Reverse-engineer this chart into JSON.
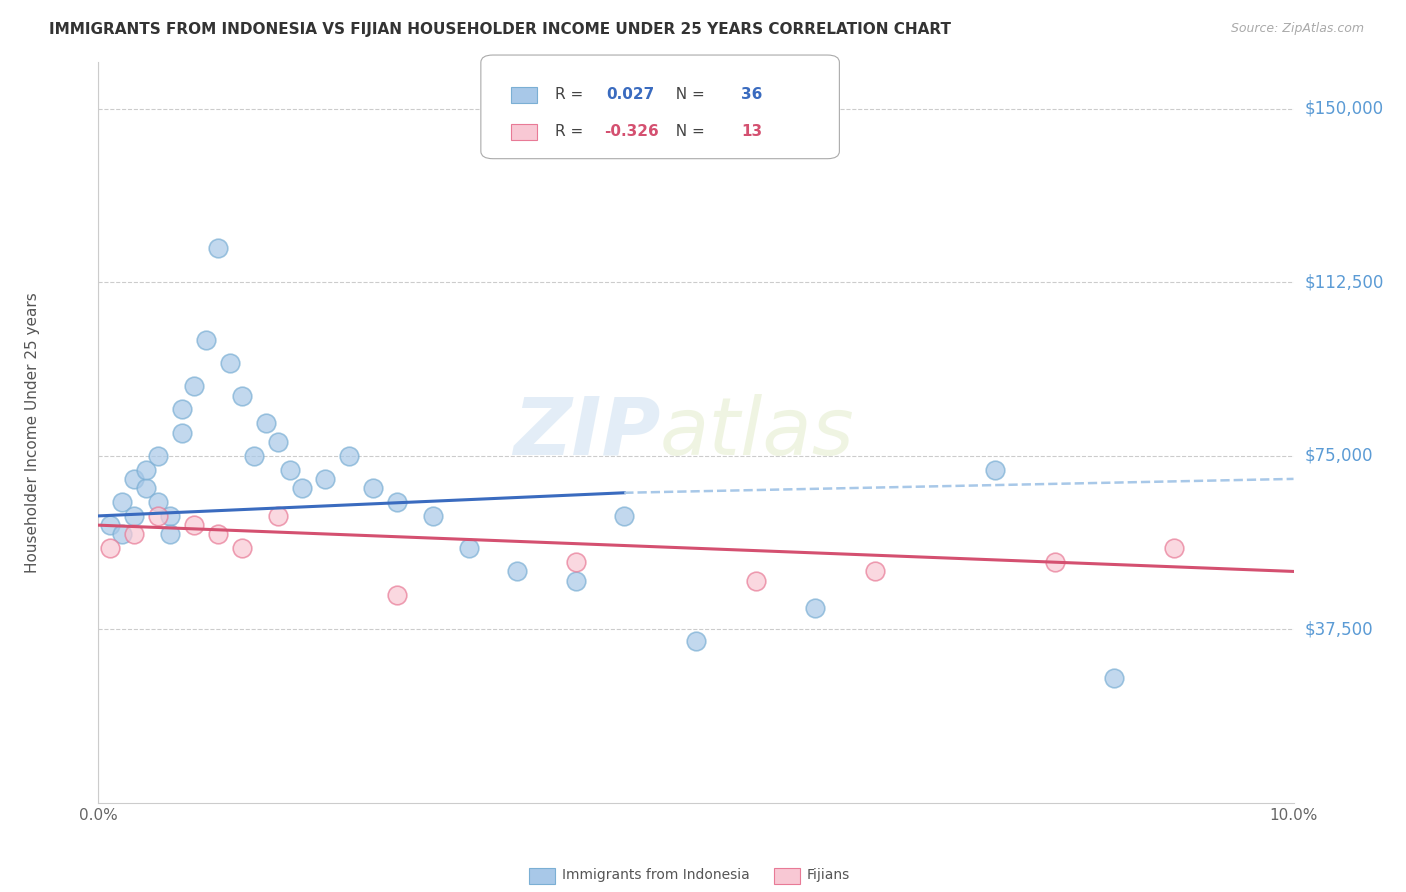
{
  "title": "IMMIGRANTS FROM INDONESIA VS FIJIAN HOUSEHOLDER INCOME UNDER 25 YEARS CORRELATION CHART",
  "source": "Source: ZipAtlas.com",
  "ylabel": "Householder Income Under 25 years",
  "xlim": [
    0.0,
    0.1
  ],
  "ylim": [
    0,
    160000
  ],
  "yticks": [
    0,
    37500,
    75000,
    112500,
    150000
  ],
  "xticks": [
    0.0,
    0.02,
    0.04,
    0.06,
    0.08,
    0.1
  ],
  "xtick_labels": [
    "0.0%",
    "",
    "",
    "",
    "",
    "10.0%"
  ],
  "indonesia_x": [
    0.001,
    0.002,
    0.002,
    0.003,
    0.003,
    0.004,
    0.004,
    0.005,
    0.005,
    0.006,
    0.006,
    0.007,
    0.007,
    0.008,
    0.009,
    0.01,
    0.011,
    0.012,
    0.013,
    0.014,
    0.015,
    0.016,
    0.017,
    0.019,
    0.021,
    0.023,
    0.025,
    0.028,
    0.031,
    0.035,
    0.04,
    0.044,
    0.05,
    0.06,
    0.075,
    0.085
  ],
  "indonesia_y": [
    60000,
    58000,
    65000,
    62000,
    70000,
    68000,
    72000,
    75000,
    65000,
    62000,
    58000,
    80000,
    85000,
    90000,
    100000,
    120000,
    95000,
    88000,
    75000,
    82000,
    78000,
    72000,
    68000,
    70000,
    75000,
    68000,
    65000,
    62000,
    55000,
    50000,
    48000,
    62000,
    35000,
    42000,
    72000,
    27000
  ],
  "fijian_x": [
    0.001,
    0.003,
    0.005,
    0.008,
    0.01,
    0.012,
    0.015,
    0.025,
    0.04,
    0.055,
    0.065,
    0.08,
    0.09
  ],
  "fijian_y": [
    55000,
    58000,
    62000,
    60000,
    58000,
    55000,
    62000,
    45000,
    52000,
    48000,
    50000,
    52000,
    55000
  ],
  "indonesia_r": 0.027,
  "indonesia_n": 36,
  "fijian_r": -0.326,
  "fijian_n": 13,
  "indonesia_color": "#a8c8e8",
  "indonesia_edge_color": "#7bafd4",
  "indonesia_line_color": "#3a6bbf",
  "fijian_color": "#f8c8d4",
  "fijian_edge_color": "#e87a96",
  "fijian_line_color": "#d45070",
  "dashed_line_color": "#a8c8e8",
  "background_color": "#ffffff",
  "grid_color": "#cccccc",
  "watermark_zip": "ZIP",
  "watermark_atlas": "atlas",
  "right_label_color": "#5b9bd5",
  "title_color": "#333333",
  "source_color": "#aaaaaa",
  "ylabel_color": "#555555",
  "xtick_color": "#666666"
}
